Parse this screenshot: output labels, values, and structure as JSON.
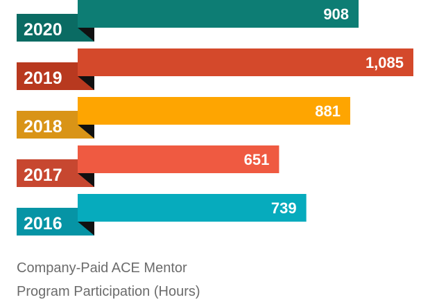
{
  "chart_data": {
    "type": "bar",
    "orientation": "horizontal",
    "categories": [
      "2020",
      "2019",
      "2018",
      "2017",
      "2016"
    ],
    "values": [
      908,
      1085,
      881,
      651,
      739
    ],
    "value_labels": [
      "908",
      "1,085",
      "881",
      "651",
      "739"
    ],
    "colors": {
      "2020": {
        "bar": "#0d7d74",
        "tag": "#0a6b63"
      },
      "2019": {
        "bar": "#d4492b",
        "tag": "#b8391f"
      },
      "2018": {
        "bar": "#fea501",
        "tag": "#d99417"
      },
      "2017": {
        "bar": "#ef5a41",
        "tag": "#c74730"
      },
      "2016": {
        "bar": "#06abbd",
        "tag": "#0694a5"
      }
    },
    "title": "",
    "xlabel": "",
    "ylabel": ""
  },
  "caption": {
    "line1": "Company-Paid ACE Mentor",
    "line2": "Program Participation (Hours)"
  }
}
